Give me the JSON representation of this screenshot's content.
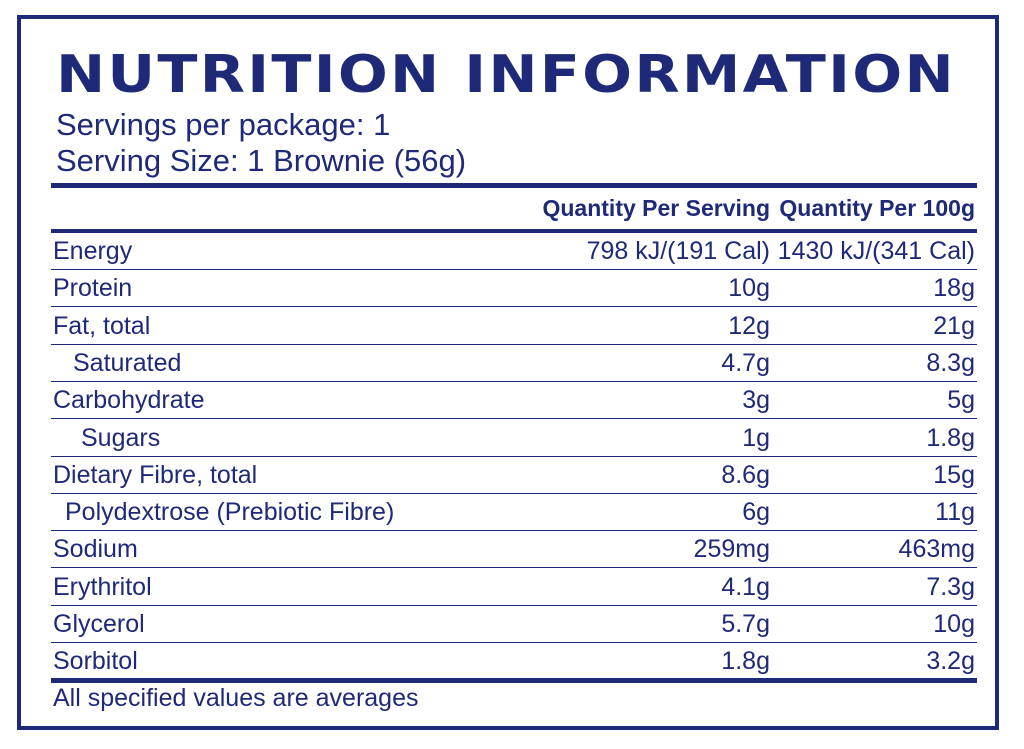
{
  "panel": {
    "title": "NUTRITION INFORMATION",
    "servings_per_package": "Servings per package: 1",
    "serving_size": "Serving Size: 1 Brownie (56g)",
    "columns": [
      "Quantity Per Serving",
      "Quantity Per 100g"
    ],
    "rows": [
      {
        "label": "Energy",
        "per_serving": "798 kJ/(191 Cal)",
        "per_100g": "1430 kJ/(341 Cal)",
        "indent": 0
      },
      {
        "label": "Protein",
        "per_serving": "10g",
        "per_100g": "18g",
        "indent": 0
      },
      {
        "label": "Fat, total",
        "per_serving": "12g",
        "per_100g": "21g",
        "indent": 0
      },
      {
        "label": "Saturated",
        "per_serving": "4.7g",
        "per_100g": "8.3g",
        "indent": 1
      },
      {
        "label": "Carbohydrate",
        "per_serving": "3g",
        "per_100g": "5g",
        "indent": 0
      },
      {
        "label": "Sugars",
        "per_serving": "1g",
        "per_100g": "1.8g",
        "indent": 1
      },
      {
        "label": "Dietary Fibre, total",
        "per_serving": "8.6g",
        "per_100g": "15g",
        "indent": 0
      },
      {
        "label": "Polydextrose (Prebiotic Fibre)",
        "per_serving": "6g",
        "per_100g": "11g",
        "indent": 1
      },
      {
        "label": "Sodium",
        "per_serving": "259mg",
        "per_100g": "463mg",
        "indent": 0
      },
      {
        "label": "Erythritol",
        "per_serving": "4.1g",
        "per_100g": "7.3g",
        "indent": 0
      },
      {
        "label": "Glycerol",
        "per_serving": "5.7g",
        "per_100g": "10g",
        "indent": 0
      },
      {
        "label": "Sorbitol",
        "per_serving": "1.8g",
        "per_100g": "3.2g",
        "indent": 0
      }
    ],
    "footnote": "All specified values are averages"
  },
  "colors": {
    "ink": "#1e2a78",
    "background": "#ffffff"
  }
}
